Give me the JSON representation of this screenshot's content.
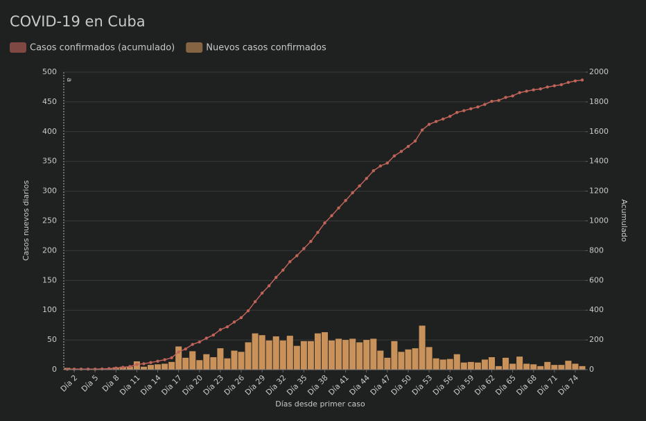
{
  "chart_data": {
    "type": "bar-line",
    "title": "COVID-19 en Cuba",
    "x_label": "Días desde primer caso",
    "y_label": "Casos nuevos diarios",
    "y2_label": "Acumulado",
    "annotation": "a",
    "categories": [
      null,
      "Día 2",
      null,
      null,
      "Día 5",
      null,
      null,
      "Día 8",
      null,
      null,
      "Día 11",
      null,
      null,
      "Día 14",
      null,
      null,
      "Día 17",
      null,
      null,
      "Día 20",
      null,
      null,
      "Día 23",
      null,
      null,
      "Día 26",
      null,
      null,
      "Día 29",
      null,
      null,
      "Día 32",
      null,
      null,
      "Día 35",
      null,
      null,
      "Día 38",
      null,
      null,
      "Día 41",
      null,
      null,
      "Día 44",
      null,
      null,
      "Día 47",
      null,
      null,
      "Día 50",
      null,
      null,
      "Día 53",
      null,
      null,
      "Día 56",
      null,
      null,
      "Día 59",
      null,
      null,
      "Día 62",
      null,
      null,
      "Día 65",
      null,
      null,
      "Día 68",
      null,
      null,
      "Día 71",
      null,
      null,
      "Día 74",
      null
    ],
    "series": [
      {
        "name": "Casos confirmados (acumulado)",
        "color": "#c0645a",
        "type": "line",
        "axis": "y2",
        "values": [
          3,
          4,
          4,
          4,
          4,
          5,
          7,
          11,
          16,
          21,
          35,
          40,
          48,
          57,
          67,
          80,
          119,
          139,
          170,
          186,
          212,
          233,
          269,
          288,
          320,
          350,
          396,
          457,
          515,
          564,
          620,
          669,
          726,
          766,
          814,
          862,
          923,
          986,
          1035,
          1087,
          1137,
          1189,
          1235,
          1285,
          1337,
          1369,
          1389,
          1437,
          1467,
          1501,
          1537,
          1611,
          1649,
          1668,
          1685,
          1703,
          1729,
          1741,
          1754,
          1766,
          1783,
          1804,
          1810,
          1830,
          1840,
          1862,
          1872,
          1881,
          1887,
          1900,
          1908,
          1916,
          1931,
          1941,
          1947
        ]
      },
      {
        "name": "Nuevos casos confirmados",
        "color": "#c8925a",
        "type": "bar",
        "axis": "y",
        "values": [
          3,
          1,
          0,
          0,
          0,
          1,
          2,
          4,
          5,
          5,
          14,
          5,
          8,
          9,
          10,
          13,
          39,
          20,
          31,
          16,
          26,
          21,
          36,
          19,
          32,
          30,
          46,
          61,
          58,
          49,
          56,
          49,
          57,
          40,
          48,
          48,
          61,
          63,
          49,
          52,
          50,
          52,
          46,
          50,
          52,
          32,
          20,
          48,
          30,
          34,
          36,
          74,
          38,
          19,
          17,
          18,
          26,
          12,
          13,
          12,
          17,
          21,
          6,
          20,
          10,
          22,
          10,
          9,
          6,
          13,
          8,
          8,
          15,
          10,
          6
        ]
      }
    ],
    "ylim": [
      0,
      500
    ],
    "yticks": [
      0,
      50,
      100,
      150,
      200,
      250,
      300,
      350,
      400,
      450,
      500
    ],
    "y2lim": [
      0,
      2000
    ],
    "y2ticks": [
      0,
      200,
      400,
      600,
      800,
      1000,
      1200,
      1400,
      1600,
      1800,
      2000
    ],
    "grid": true
  }
}
